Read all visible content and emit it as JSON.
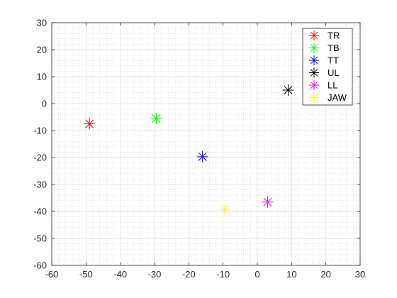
{
  "chart_data": {
    "type": "scatter",
    "title": "",
    "xlabel": "",
    "ylabel": "",
    "xlim": [
      -60,
      30
    ],
    "ylim": [
      -60,
      30
    ],
    "x_ticks": [
      -60,
      -50,
      -40,
      -30,
      -20,
      -10,
      0,
      10,
      20,
      30
    ],
    "y_ticks": [
      30,
      20,
      10,
      0,
      -10,
      -20,
      -30,
      -40,
      -50,
      -60
    ],
    "grid": true,
    "minor_grid": true,
    "marker": "asterisk",
    "legend_position": "top-right",
    "series": [
      {
        "name": "TR",
        "color": "#ff0000",
        "x": [
          -49
        ],
        "y": [
          -7.5
        ]
      },
      {
        "name": "TB",
        "color": "#00ff00",
        "x": [
          -29.5
        ],
        "y": [
          -5.5
        ]
      },
      {
        "name": "TT",
        "color": "#0000ff",
        "x": [
          -16
        ],
        "y": [
          -19.7
        ]
      },
      {
        "name": "UL",
        "color": "#000000",
        "x": [
          9
        ],
        "y": [
          5
        ]
      },
      {
        "name": "LL",
        "color": "#ff00ff",
        "x": [
          3
        ],
        "y": [
          -36.5
        ]
      },
      {
        "name": "JAW",
        "color": "#ffff00",
        "x": [
          -9.5
        ],
        "y": [
          -39.3
        ]
      }
    ]
  }
}
